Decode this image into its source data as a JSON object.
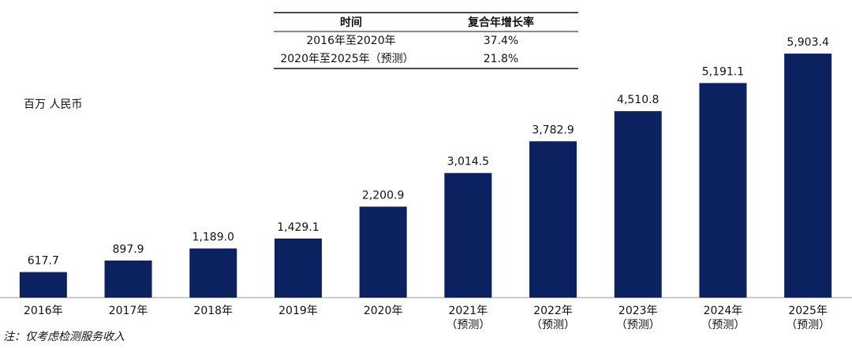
{
  "chart_data": {
    "type": "bar",
    "unit_label": "百万 人民币",
    "categories": [
      "2016年",
      "2017年",
      "2018年",
      "2019年",
      "2020年",
      "2021年",
      "2022年",
      "2023年",
      "2024年",
      "2025年"
    ],
    "category_notes": [
      null,
      null,
      null,
      null,
      null,
      "（预测）",
      "（预测）",
      "（预测）",
      "（预测）",
      "（预测）"
    ],
    "values": [
      617.7,
      897.9,
      1189.0,
      1429.1,
      2200.9,
      3014.5,
      3782.9,
      4510.8,
      5191.1,
      5903.4
    ],
    "value_labels": [
      "617.7",
      "897.9",
      "1,189.0",
      "1,429.1",
      "2,200.9",
      "3,014.5",
      "3,782.9",
      "4,510.8",
      "5,191.1",
      "5,903.4"
    ],
    "color": "#0b2160",
    "ylim": [
      0,
      6000
    ],
    "cagr_table": {
      "header": [
        "时间",
        "复合年增长率"
      ],
      "rows": [
        [
          "2016年至2020年",
          "37.4%"
        ],
        [
          "2020年至2025年（预测）",
          "21.8%"
        ]
      ]
    },
    "note": "注：仅考虑检测服务收入"
  }
}
